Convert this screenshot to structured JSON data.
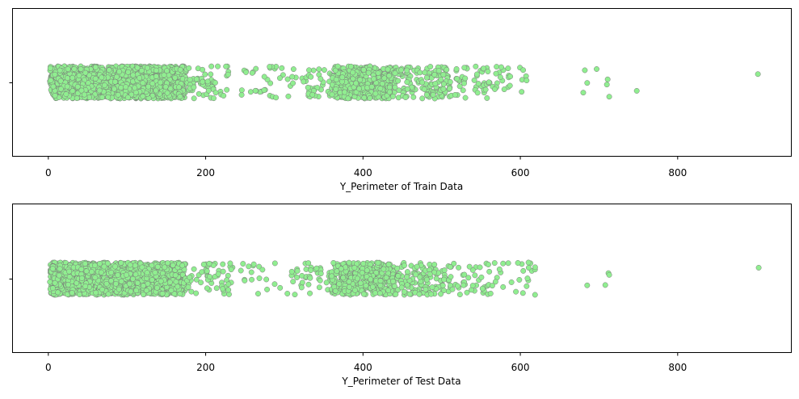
{
  "colors": {
    "point_fill": "#90ee90",
    "point_edge": "#7a7a7a",
    "axis": "#000000"
  },
  "chart_data": [
    {
      "type": "strip",
      "xlabel": "Y_Perimeter of Train Data",
      "xlim": [
        -45,
        945
      ],
      "xticks": [
        0,
        200,
        400,
        600,
        800
      ],
      "ytick_labels": [
        ""
      ],
      "grid": false,
      "clusters": [
        {
          "range": [
            2,
            175
          ],
          "count": 1400
        },
        {
          "range": [
            175,
            230
          ],
          "count": 60
        },
        {
          "range": [
            230,
            330
          ],
          "count": 40
        },
        {
          "range": [
            330,
            360
          ],
          "count": 30
        },
        {
          "range": [
            360,
            440
          ],
          "count": 420
        },
        {
          "range": [
            440,
            510
          ],
          "count": 140
        },
        {
          "range": [
            510,
            560
          ],
          "count": 45
        },
        {
          "range": [
            560,
            610
          ],
          "count": 25
        }
      ],
      "points": [
        608,
        680,
        682,
        685,
        697,
        710,
        711,
        713,
        748,
        902
      ]
    },
    {
      "type": "strip",
      "xlabel": "Y_Perimeter of Test Data",
      "xlim": [
        -45,
        945
      ],
      "xticks": [
        0,
        200,
        400,
        600,
        800
      ],
      "ytick_labels": [
        ""
      ],
      "grid": false,
      "clusters": [
        {
          "range": [
            2,
            175
          ],
          "count": 1300
        },
        {
          "range": [
            175,
            235
          ],
          "count": 55
        },
        {
          "range": [
            235,
            330
          ],
          "count": 35
        },
        {
          "range": [
            330,
            360
          ],
          "count": 25
        },
        {
          "range": [
            360,
            440
          ],
          "count": 380
        },
        {
          "range": [
            440,
            510
          ],
          "count": 130
        },
        {
          "range": [
            510,
            560
          ],
          "count": 40
        },
        {
          "range": [
            560,
            620
          ],
          "count": 28
        }
      ],
      "points": [
        685,
        708,
        712,
        713,
        903
      ]
    }
  ]
}
